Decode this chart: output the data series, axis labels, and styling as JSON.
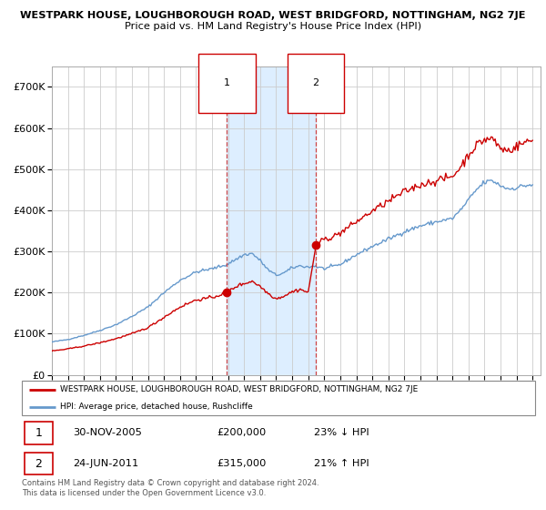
{
  "title": "WESTPARK HOUSE, LOUGHBOROUGH ROAD, WEST BRIDGFORD, NOTTINGHAM, NG2 7JE",
  "subtitle": "Price paid vs. HM Land Registry's House Price Index (HPI)",
  "red_label": "WESTPARK HOUSE, LOUGHBOROUGH ROAD, WEST BRIDGFORD, NOTTINGHAM, NG2 7JE",
  "blue_label": "HPI: Average price, detached house, Rushcliffe",
  "transaction1_date": "30-NOV-2005",
  "transaction1_price": "£200,000",
  "transaction1_hpi": "23% ↓ HPI",
  "transaction2_date": "24-JUN-2011",
  "transaction2_price": "£315,000",
  "transaction2_hpi": "21% ↑ HPI",
  "footer": "Contains HM Land Registry data © Crown copyright and database right 2024.\nThis data is licensed under the Open Government Licence v3.0.",
  "ylim": [
    0,
    750000
  ],
  "yticks": [
    0,
    100000,
    200000,
    300000,
    400000,
    500000,
    600000,
    700000
  ],
  "xlim_start": 1995.0,
  "xlim_end": 2025.5,
  "background_color": "#ffffff",
  "grid_color": "#cccccc",
  "highlight_color": "#ddeeff",
  "vline_color": "#cc4444",
  "red_color": "#cc0000",
  "blue_color": "#6699cc",
  "marker1_x": 2005.92,
  "marker1_y": 200000,
  "marker2_x": 2011.48,
  "marker2_y": 315000,
  "vline1_x": 2005.92,
  "vline2_x": 2011.48,
  "xticks": [
    1995,
    1996,
    1997,
    1998,
    1999,
    2000,
    2001,
    2002,
    2003,
    2004,
    2005,
    2006,
    2007,
    2008,
    2009,
    2010,
    2011,
    2012,
    2013,
    2014,
    2015,
    2016,
    2017,
    2018,
    2019,
    2020,
    2021,
    2022,
    2023,
    2024,
    2025
  ]
}
